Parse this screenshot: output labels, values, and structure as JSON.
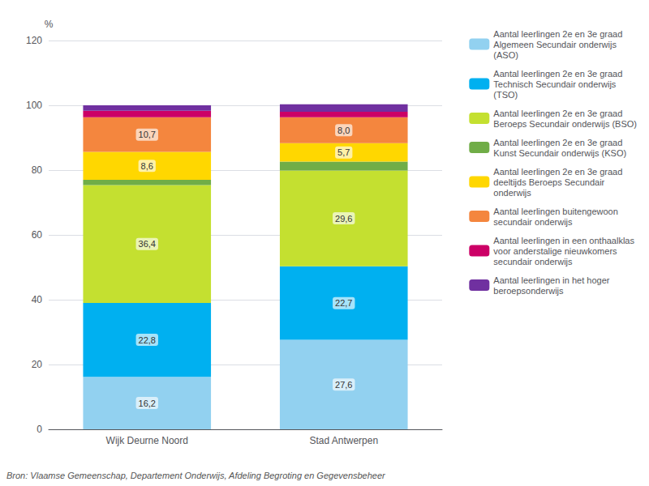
{
  "chart_data": {
    "type": "bar",
    "stacked": true,
    "ylabel": "%",
    "annotations": [
      "Bron: Vlaamse Gemeenschap, Departement Onderwijs, Afdeling Begroting en Gegevensbeheer"
    ],
    "categories": [
      "Wijk Deurne Noord",
      "Stad Antwerpen"
    ],
    "series": [
      {
        "name": "Aantal leerlingen 2e en 3e graad\nAlgemeen Secundair onderwijs\n(ASO)",
        "color": "#92d1f0",
        "values": [
          16.2,
          27.6
        ],
        "value_labels": [
          "16,2",
          "27,6"
        ]
      },
      {
        "name": "Aantal leerlingen 2e en 3e graad\nTechnisch Secundair onderwijs\n(TSO)",
        "color": "#00b0f0",
        "values": [
          22.8,
          22.7
        ],
        "value_labels": [
          "22,8",
          "22,7"
        ]
      },
      {
        "name": "Aantal leerlingen 2e en 3e graad\nBeroeps Secundair onderwijs (BSO)",
        "color": "#c4e030",
        "values": [
          36.4,
          29.6
        ],
        "value_labels": [
          "36,4",
          "29,6"
        ]
      },
      {
        "name": "Aantal leerlingen 2e en 3e graad\nKunst Secundair onderwijs (KSO)",
        "color": "#70ad47",
        "values": [
          1.6,
          2.7
        ]
      },
      {
        "name": "Aantal leerlingen 2e en 3e graad\ndeeltijds Beroeps Secundair\nonderwijs",
        "color": "#ffd700",
        "values": [
          8.6,
          5.7
        ],
        "value_labels": [
          "8,6",
          "5,7"
        ]
      },
      {
        "name": "Aantal leerlingen buitengewoon\nsecundair onderwijs",
        "color": "#f4863e",
        "values": [
          10.7,
          8.0
        ],
        "value_labels": [
          "10,7",
          "8,0"
        ]
      },
      {
        "name": "Aantal leerlingen in een onthaalklas\nvoor anderstalige nieuwkomers\nsecundair onderwijs",
        "color": "#cc0066",
        "values": [
          2.0,
          1.7
        ]
      },
      {
        "name": "Aantal leerlingen in het hoger\nberoepsonderwijs",
        "color": "#7030a0",
        "values": [
          1.7,
          2.3
        ]
      }
    ],
    "ylim": [
      0,
      120
    ],
    "yticks": [
      0,
      20,
      40,
      60,
      80,
      100,
      120
    ],
    "grid": true,
    "data_labels": true,
    "legend": "right"
  }
}
